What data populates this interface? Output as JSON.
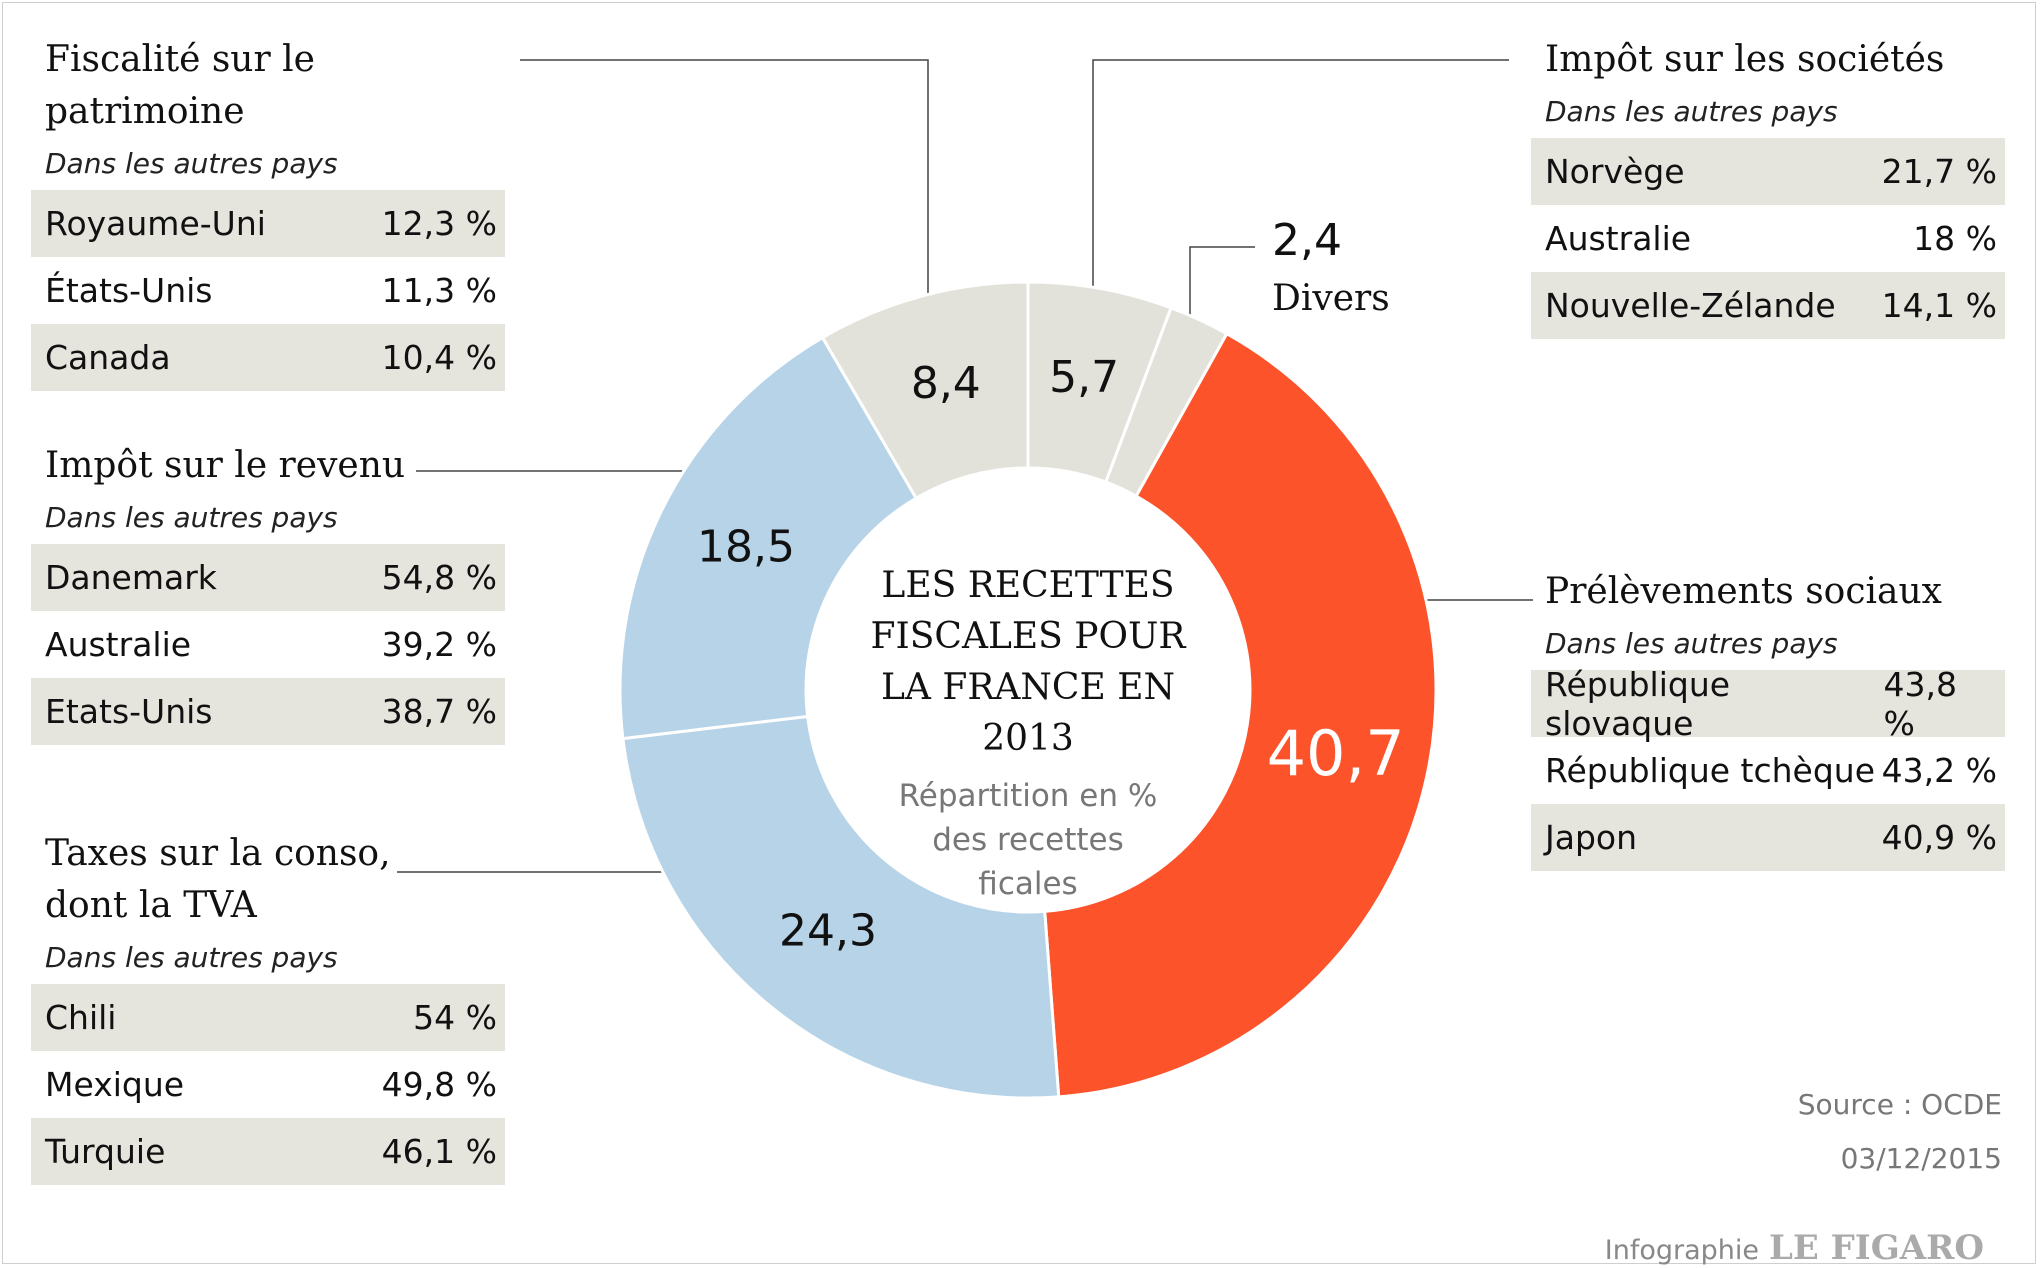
{
  "chart_data": {
    "type": "pie",
    "donut": true,
    "title": "LES RECETTES FISCALES POUR LA FRANCE EN 2013",
    "subtitle": "Répartition en % des recettes ficales",
    "categories": [
      "Impôt sur les sociétés",
      "Divers",
      "Prélèvements sociaux",
      "Taxes sur la conso, dont la TVA",
      "Impôt sur le revenu",
      "Fiscalité sur le patrimoine"
    ],
    "values": [
      5.7,
      2.4,
      40.7,
      24.3,
      18.5,
      8.4
    ],
    "value_labels": [
      "5,7",
      "2,4",
      "40,7",
      "24,3",
      "18,5",
      "8,4"
    ],
    "colors": [
      "#e3e2da",
      "#e3e2da",
      "#fc532b",
      "#b7d3e8",
      "#b7d3e8",
      "#e3e2da"
    ],
    "details": [
      {
        "subtitle": "Dans les autres pays",
        "rows": [
          [
            "Norvège",
            "21,7 %"
          ],
          [
            "Australie",
            "18 %"
          ],
          [
            "Nouvelle-Zélande",
            "14,1 %"
          ]
        ]
      },
      null,
      {
        "subtitle": "Dans les autres pays",
        "rows": [
          [
            "République slovaque",
            "43,8 %"
          ],
          [
            "République tchèque",
            "43,2 %"
          ],
          [
            "Japon",
            "40,9 %"
          ]
        ]
      },
      {
        "subtitle": "Dans les autres pays",
        "rows": [
          [
            "Chili",
            "54 %"
          ],
          [
            "Mexique",
            "49,8 %"
          ],
          [
            "Turquie",
            "46,1 %"
          ]
        ]
      },
      {
        "subtitle": "Dans les autres pays",
        "rows": [
          [
            "Danemark",
            "54,8 %"
          ],
          [
            "Australie",
            "39,2 %"
          ],
          [
            "Etats-Unis",
            "38,7 %"
          ]
        ]
      },
      {
        "subtitle": "Dans les autres pays",
        "rows": [
          [
            "Royaume-Uni",
            "12,3 %"
          ],
          [
            "États-Unis",
            "11,3 %"
          ],
          [
            "Canada",
            "10,4 %"
          ]
        ]
      }
    ],
    "source": "Source : OCDE",
    "date": "03/12/2015",
    "credit": "Infographie",
    "brand": "LE FIGARO"
  }
}
